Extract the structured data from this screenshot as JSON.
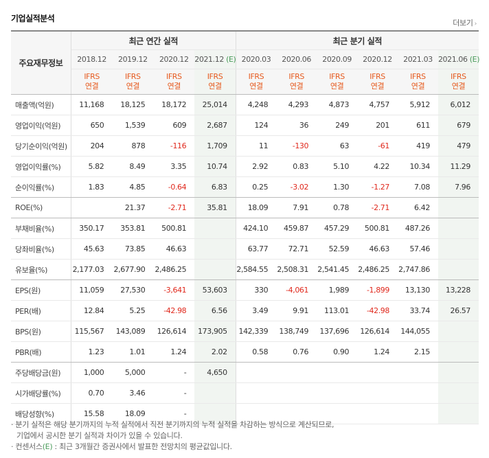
{
  "title": "기업실적분석",
  "more": "더보기",
  "header": {
    "row_label": "주요재무정보",
    "annual_label": "최근 연간 실적",
    "quarter_label": "최근 분기 실적",
    "periods": [
      "2018.12",
      "2019.12",
      "2020.12",
      "2021.12",
      "2020.03",
      "2020.06",
      "2020.09",
      "2020.12",
      "2021.03",
      "2021.06"
    ],
    "estimate_flags": [
      false,
      false,
      false,
      true,
      false,
      false,
      false,
      false,
      false,
      true
    ],
    "estimate_mark": "(E)",
    "ifrs": "IFRS",
    "consolidated": "연결"
  },
  "rows": [
    {
      "label": "매출액(억원)",
      "values": [
        "11,168",
        "18,125",
        "18,172",
        "25,014",
        "4,248",
        "4,293",
        "4,873",
        "4,757",
        "5,912",
        "6,012"
      ]
    },
    {
      "label": "영업이익(억원)",
      "values": [
        "650",
        "1,539",
        "609",
        "2,687",
        "124",
        "36",
        "249",
        "201",
        "611",
        "679"
      ]
    },
    {
      "label": "당기순이익(억원)",
      "values": [
        "204",
        "878",
        "-116",
        "1,709",
        "11",
        "-130",
        "63",
        "-61",
        "419",
        "479"
      ]
    },
    {
      "label": "영업이익률(%)",
      "values": [
        "5.82",
        "8.49",
        "3.35",
        "10.74",
        "2.92",
        "0.83",
        "5.10",
        "4.22",
        "10.34",
        "11.29"
      ]
    },
    {
      "label": "순이익률(%)",
      "values": [
        "1.83",
        "4.85",
        "-0.64",
        "6.83",
        "0.25",
        "-3.02",
        "1.30",
        "-1.27",
        "7.08",
        "7.96"
      ]
    },
    {
      "label": "ROE(%)",
      "values": [
        "",
        "21.37",
        "-2.71",
        "35.81",
        "18.09",
        "7.91",
        "0.78",
        "-2.71",
        "6.42",
        ""
      ]
    },
    {
      "label": "부채비율(%)",
      "values": [
        "350.17",
        "353.81",
        "500.81",
        "",
        "424.10",
        "459.87",
        "457.29",
        "500.81",
        "487.26",
        ""
      ]
    },
    {
      "label": "당좌비율(%)",
      "values": [
        "45.63",
        "73.85",
        "46.63",
        "",
        "63.77",
        "72.71",
        "52.59",
        "46.63",
        "57.46",
        ""
      ]
    },
    {
      "label": "유보율(%)",
      "values": [
        "2,177.03",
        "2,677.90",
        "2,486.25",
        "",
        "2,584.55",
        "2,508.31",
        "2,541.45",
        "2,486.25",
        "2,747.86",
        ""
      ]
    },
    {
      "label": "EPS(원)",
      "values": [
        "11,059",
        "27,530",
        "-3,641",
        "53,603",
        "330",
        "-4,061",
        "1,989",
        "-1,899",
        "13,130",
        "13,228"
      ]
    },
    {
      "label": "PER(배)",
      "values": [
        "12.84",
        "5.25",
        "-42.98",
        "6.56",
        "3.49",
        "9.91",
        "113.01",
        "-42.98",
        "33.74",
        "26.57"
      ]
    },
    {
      "label": "BPS(원)",
      "values": [
        "115,567",
        "143,089",
        "126,614",
        "173,905",
        "142,339",
        "138,749",
        "137,696",
        "126,614",
        "144,055",
        ""
      ]
    },
    {
      "label": "PBR(배)",
      "values": [
        "1.23",
        "1.01",
        "1.24",
        "2.02",
        "0.58",
        "0.76",
        "0.90",
        "1.24",
        "2.15",
        ""
      ]
    },
    {
      "label": "주당배당금(원)",
      "values": [
        "1,000",
        "5,000",
        "-",
        "4,650",
        "",
        "",
        "",
        "",
        "",
        ""
      ]
    },
    {
      "label": "시가배당률(%)",
      "values": [
        "0.70",
        "3.46",
        "-",
        "",
        "",
        "",
        "",
        "",
        "",
        ""
      ]
    },
    {
      "label": "배당성향(%)",
      "values": [
        "15.58",
        "18.09",
        "-",
        "",
        "",
        "",
        "",
        "",
        "",
        ""
      ]
    }
  ],
  "notes": {
    "line1": "· 분기 실적은 해당 분기까지의 누적 실적에서 직전 분기까지의 누적 실적을 차감하는 방식으로 계산되므로,",
    "line2": "기업에서 공시한 분기 실적과 차이가 있을 수 있습니다.",
    "line3_prefix": "· 컨센서스",
    "line3_mark": "(E)",
    "line3_suffix": ": 최근 3개월간 증권사에서 발표한 전망치의 평균값입니다."
  },
  "colors": {
    "negative": "#e0281c",
    "ifrs": "#e65a1e",
    "estimate": "#4a9b5a"
  }
}
